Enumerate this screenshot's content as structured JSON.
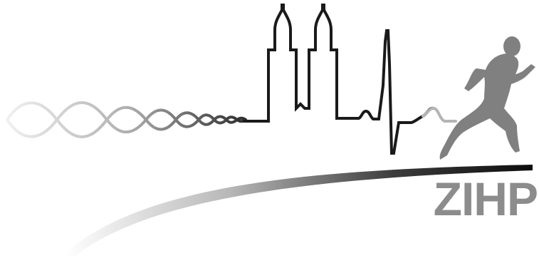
{
  "logo": {
    "wordmark": "ZIHP",
    "colors": {
      "skyline_line": "#1a1a1a",
      "runner": "#808080",
      "wordmark": "#8c8c8c",
      "helix_light": "#dcdcdc",
      "helix_dark": "#3a3a3a",
      "swoosh_dark": "#111111",
      "swoosh_light": "#ffffff",
      "heartbeat_tail": "#b5b5b5"
    }
  }
}
